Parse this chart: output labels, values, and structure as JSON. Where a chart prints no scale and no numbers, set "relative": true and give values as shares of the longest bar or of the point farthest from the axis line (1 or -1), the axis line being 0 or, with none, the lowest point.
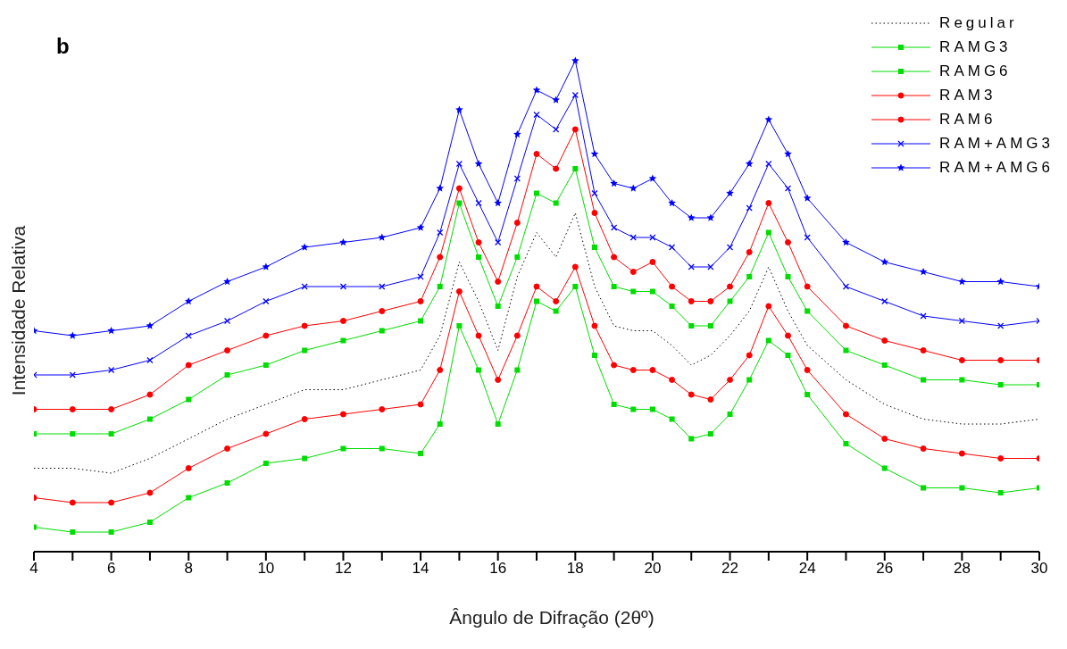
{
  "chart_data": {
    "type": "line",
    "relative": true,
    "annotations": [
      "b"
    ],
    "ylabel": "Intensidade Relativa",
    "xlabel": "Ângulo de Difração (2θº)",
    "xlim": [
      4,
      30
    ],
    "xticks": [
      4,
      {
        "value": 5,
        "label": null
      },
      6,
      {
        "value": 7,
        "label": null
      },
      8,
      {
        "value": 9,
        "label": null
      },
      10,
      {
        "value": 11,
        "label": null
      },
      12,
      {
        "value": 13,
        "label": null
      },
      14,
      {
        "value": 15,
        "label": null
      },
      16,
      {
        "value": 17,
        "label": null
      },
      18,
      {
        "value": 19,
        "label": null
      },
      20,
      {
        "value": 21,
        "label": null
      },
      22,
      {
        "value": 23,
        "label": null
      },
      24,
      {
        "value": 25,
        "label": null
      },
      26,
      {
        "value": 27,
        "label": null
      },
      28,
      {
        "value": 29,
        "label": null
      },
      30
    ],
    "legend": "top right",
    "x": [
      4,
      5,
      6,
      7,
      8,
      9,
      10,
      11,
      12,
      13,
      14,
      14.5,
      15,
      15.5,
      16,
      16.5,
      17,
      17.5,
      18,
      18.5,
      19,
      19.5,
      20,
      20.5,
      21,
      21.5,
      22,
      22.5,
      23,
      23.5,
      24,
      25,
      26,
      27,
      28,
      29,
      30
    ],
    "series": [
      {
        "name": "Regular",
        "color": "#000000",
        "marker": "none",
        "line_style": "dotted",
        "values": [
          0.17,
          0.17,
          0.16,
          0.19,
          0.23,
          0.27,
          0.3,
          0.33,
          0.33,
          0.35,
          0.37,
          0.44,
          0.59,
          0.51,
          0.41,
          0.56,
          0.65,
          0.6,
          0.69,
          0.54,
          0.46,
          0.45,
          0.45,
          0.42,
          0.38,
          0.4,
          0.44,
          0.49,
          0.58,
          0.49,
          0.42,
          0.35,
          0.3,
          0.27,
          0.26,
          0.26,
          0.27
        ]
      },
      {
        "name": "RAMG3",
        "color": "#00dd00",
        "marker": "square",
        "line_style": "solid",
        "values": [
          0.05,
          0.04,
          0.04,
          0.06,
          0.11,
          0.14,
          0.18,
          0.19,
          0.21,
          0.21,
          0.2,
          0.26,
          0.46,
          0.37,
          0.26,
          0.37,
          0.51,
          0.49,
          0.54,
          0.4,
          0.3,
          0.29,
          0.29,
          0.27,
          0.23,
          0.24,
          0.28,
          0.35,
          0.43,
          0.4,
          0.32,
          0.22,
          0.17,
          0.13,
          0.13,
          0.12,
          0.13
        ]
      },
      {
        "name": "RAMG6",
        "color": "#00dd00",
        "marker": "square",
        "line_style": "solid",
        "values": [
          0.24,
          0.24,
          0.24,
          0.27,
          0.31,
          0.36,
          0.38,
          0.41,
          0.43,
          0.45,
          0.47,
          0.54,
          0.71,
          0.6,
          0.5,
          0.6,
          0.73,
          0.71,
          0.78,
          0.62,
          0.54,
          0.53,
          0.53,
          0.5,
          0.46,
          0.46,
          0.51,
          0.56,
          0.65,
          0.56,
          0.49,
          0.41,
          0.38,
          0.35,
          0.35,
          0.34,
          0.34
        ]
      },
      {
        "name": "RAM3",
        "color": "#ff0000",
        "marker": "circle",
        "line_style": "solid",
        "values": [
          0.29,
          0.29,
          0.29,
          0.32,
          0.38,
          0.41,
          0.44,
          0.46,
          0.47,
          0.49,
          0.51,
          0.6,
          0.74,
          0.63,
          0.55,
          0.67,
          0.81,
          0.78,
          0.86,
          0.69,
          0.6,
          0.57,
          0.59,
          0.54,
          0.51,
          0.51,
          0.54,
          0.61,
          0.71,
          0.63,
          0.54,
          0.46,
          0.43,
          0.41,
          0.39,
          0.39,
          0.39
        ]
      },
      {
        "name": "RAM6",
        "color": "#ff0000",
        "marker": "circle",
        "line_style": "solid",
        "values": [
          0.11,
          0.1,
          0.1,
          0.12,
          0.17,
          0.21,
          0.24,
          0.27,
          0.28,
          0.29,
          0.3,
          0.37,
          0.53,
          0.44,
          0.35,
          0.44,
          0.54,
          0.51,
          0.58,
          0.46,
          0.38,
          0.37,
          0.37,
          0.35,
          0.32,
          0.31,
          0.35,
          0.4,
          0.5,
          0.44,
          0.37,
          0.28,
          0.23,
          0.21,
          0.2,
          0.19,
          0.19
        ]
      },
      {
        "name": "RAM+AMG3",
        "color": "#0000ff",
        "marker": "cross",
        "line_style": "solid",
        "values": [
          0.36,
          0.36,
          0.37,
          0.39,
          0.44,
          0.47,
          0.51,
          0.54,
          0.54,
          0.54,
          0.56,
          0.65,
          0.79,
          0.71,
          0.63,
          0.76,
          0.89,
          0.86,
          0.93,
          0.73,
          0.66,
          0.64,
          0.64,
          0.62,
          0.58,
          0.58,
          0.62,
          0.7,
          0.79,
          0.74,
          0.64,
          0.54,
          0.51,
          0.48,
          0.47,
          0.46,
          0.47
        ]
      },
      {
        "name": "RAM+AMG6",
        "color": "#0000ff",
        "marker": "star",
        "line_style": "solid",
        "values": [
          0.45,
          0.44,
          0.45,
          0.46,
          0.51,
          0.55,
          0.58,
          0.62,
          0.63,
          0.64,
          0.66,
          0.74,
          0.9,
          0.79,
          0.71,
          0.85,
          0.94,
          0.92,
          1,
          0.81,
          0.75,
          0.74,
          0.76,
          0.71,
          0.68,
          0.68,
          0.73,
          0.79,
          0.88,
          0.81,
          0.72,
          0.63,
          0.59,
          0.57,
          0.55,
          0.55,
          0.54
        ]
      }
    ]
  }
}
